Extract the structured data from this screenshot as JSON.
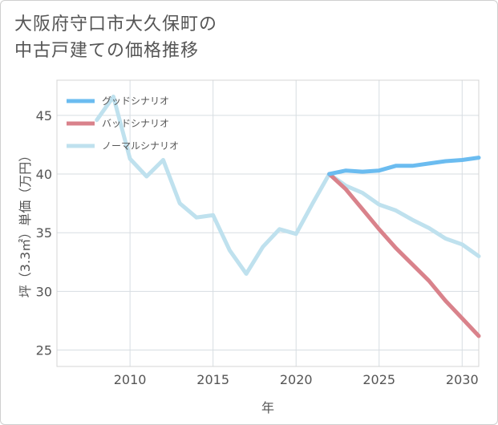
{
  "title_line1": "大阪府守口市大久保町の",
  "title_line2": "中古戸建ての価格推移",
  "chart_data": {
    "type": "line",
    "title": "大阪府守口市大久保町の中古戸建ての価格推移",
    "xlabel": "年",
    "ylabel": "坪（3.3㎡）単価（万円）",
    "xlim": [
      2005.6,
      2031
    ],
    "ylim": [
      23.6,
      48
    ],
    "xticks": [
      2010,
      2015,
      2020,
      2025,
      2030
    ],
    "yticks": [
      25,
      30,
      35,
      40,
      45
    ],
    "legend_position": "top-left",
    "series": [
      {
        "name": "グッドシナリオ",
        "color": "#6bbcf0",
        "x": [
          2022,
          2023,
          2024,
          2025,
          2026,
          2027,
          2028,
          2029,
          2030,
          2031
        ],
        "y": [
          40.0,
          40.3,
          40.2,
          40.3,
          40.7,
          40.7,
          40.9,
          41.1,
          41.2,
          41.4
        ]
      },
      {
        "name": "バッドシナリオ",
        "color": "#d9828b",
        "x": [
          2022,
          2023,
          2024,
          2025,
          2026,
          2027,
          2028,
          2029,
          2030,
          2031
        ],
        "y": [
          40.0,
          38.7,
          37.0,
          35.3,
          33.7,
          32.3,
          30.9,
          29.2,
          27.7,
          26.2
        ]
      },
      {
        "name": "ノーマルシナリオ",
        "color": "#bfe1ee",
        "x": [
          2008,
          2009,
          2010,
          2011,
          2012,
          2013,
          2014,
          2015,
          2016,
          2017,
          2018,
          2019,
          2020,
          2021,
          2022,
          2023,
          2024,
          2025,
          2026,
          2027,
          2028,
          2029,
          2030,
          2031
        ],
        "y": [
          44.6,
          46.6,
          41.3,
          39.8,
          41.2,
          37.5,
          36.3,
          36.5,
          33.5,
          31.5,
          33.8,
          35.3,
          34.9,
          37.5,
          40.0,
          39.0,
          38.4,
          37.4,
          36.9,
          36.1,
          35.4,
          34.5,
          34.0,
          33.0
        ]
      }
    ]
  }
}
